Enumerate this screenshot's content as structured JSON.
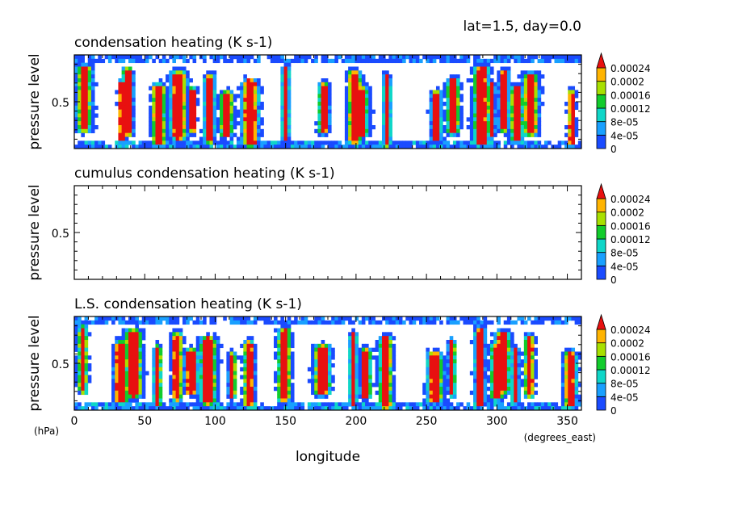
{
  "header": {
    "info": "lat=1.5, day=0.0"
  },
  "chart_data": [
    {
      "type": "heatmap",
      "title": "condensation heating (K s-1)",
      "ylabel": "pressure level",
      "xlabel": "",
      "yticks": [
        "0.5"
      ],
      "empty": false,
      "colorbar": [
        "0.00024",
        "0.0002",
        "0.00016",
        "0.00012",
        "8e-05",
        "4e-05",
        "0"
      ]
    },
    {
      "type": "heatmap",
      "title": "cumulus condensation heating (K s-1)",
      "ylabel": "pressure level",
      "xlabel": "",
      "yticks": [
        "0.5"
      ],
      "empty": true,
      "colorbar": [
        "0.00024",
        "0.0002",
        "0.00016",
        "0.00012",
        "8e-05",
        "4e-05",
        "0"
      ]
    },
    {
      "type": "heatmap",
      "title": "L.S. condensation heating (K s-1)",
      "ylabel": "pressure level",
      "xlabel": "longitude",
      "yunit": "(hPa)",
      "xunit": "(degrees_east)",
      "yticks": [
        "0.5"
      ],
      "xticks": [
        "0",
        "50",
        "100",
        "150",
        "200",
        "250",
        "300",
        "350"
      ],
      "xlim": [
        0,
        360
      ],
      "empty": false,
      "colorbar": [
        "0.00024",
        "0.0002",
        "0.00016",
        "0.00012",
        "8e-05",
        "4e-05",
        "0"
      ]
    }
  ],
  "colors": {
    "levels": [
      "#1a4bff",
      "#19a0ff",
      "#0fd6c8",
      "#12cc2c",
      "#a8e000",
      "#ffb400",
      "#e81010"
    ],
    "over": "#e81010"
  }
}
